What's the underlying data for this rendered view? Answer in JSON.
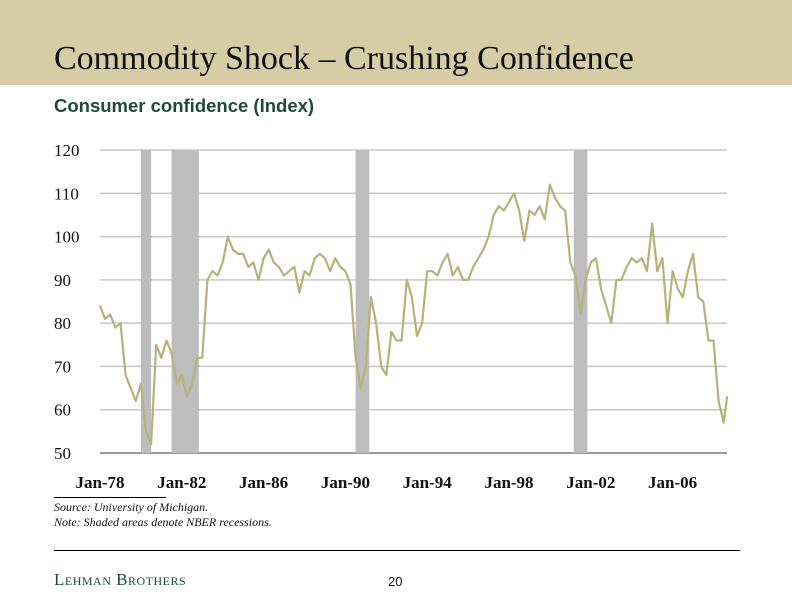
{
  "slide": {
    "title": "Commodity Shock – Crushing Confidence",
    "subtitle": "Consumer confidence (Index)",
    "source": "Source: University of Michigan.",
    "note": "Note: Shaded areas denote NBER recessions.",
    "logo": "Lehman Brothers",
    "page_number": "20",
    "header_color": "#d6cca6"
  },
  "chart_data": {
    "type": "line",
    "title": "Consumer confidence (Index)",
    "xlabel": "",
    "ylabel": "",
    "ylim": [
      50,
      120
    ],
    "yticks": [
      "50",
      "60",
      "70",
      "80",
      "90",
      "100",
      "110",
      "120"
    ],
    "xticks": [
      "Jan-78",
      "Jan-82",
      "Jan-86",
      "Jan-90",
      "Jan-94",
      "Jan-98",
      "Jan-02",
      "Jan-06"
    ],
    "xlim": [
      "1978-01",
      "2008-09"
    ],
    "grid": true,
    "line_color": "#b5b27a",
    "recession_color": "#bdbdbd",
    "recessions": [
      [
        "1980-01",
        "1980-07"
      ],
      [
        "1981-07",
        "1982-11"
      ],
      [
        "1990-07",
        "1991-03"
      ],
      [
        "2001-03",
        "2001-11"
      ]
    ],
    "series": [
      {
        "x": [
          "1978-01",
          "1978-04",
          "1978-07",
          "1978-10",
          "1979-01",
          "1979-04",
          "1979-07",
          "1979-10",
          "1980-01",
          "1980-04",
          "1980-07",
          "1980-10",
          "1981-01",
          "1981-04",
          "1981-07",
          "1981-10",
          "1982-01",
          "1982-04",
          "1982-07",
          "1982-10",
          "1983-01",
          "1983-04",
          "1983-07",
          "1983-10",
          "1984-01",
          "1984-04",
          "1984-07",
          "1984-10",
          "1985-01",
          "1985-04",
          "1985-07",
          "1985-10",
          "1986-01",
          "1986-04",
          "1986-07",
          "1986-10",
          "1987-01",
          "1987-04",
          "1987-07",
          "1987-10",
          "1988-01",
          "1988-04",
          "1988-07",
          "1988-10",
          "1989-01",
          "1989-04",
          "1989-07",
          "1989-10",
          "1990-01",
          "1990-04",
          "1990-07",
          "1990-10",
          "1991-01",
          "1991-04",
          "1991-07",
          "1991-10",
          "1992-01",
          "1992-04",
          "1992-07",
          "1992-10",
          "1993-01",
          "1993-04",
          "1993-07",
          "1993-10",
          "1994-01",
          "1994-04",
          "1994-07",
          "1994-10",
          "1995-01",
          "1995-04",
          "1995-07",
          "1995-10",
          "1996-01",
          "1996-04",
          "1996-07",
          "1996-10",
          "1997-01",
          "1997-04",
          "1997-07",
          "1997-10",
          "1998-01",
          "1998-04",
          "1998-07",
          "1998-10",
          "1999-01",
          "1999-04",
          "1999-07",
          "1999-10",
          "2000-01",
          "2000-04",
          "2000-07",
          "2000-10",
          "2001-01",
          "2001-04",
          "2001-07",
          "2001-10",
          "2002-01",
          "2002-04",
          "2002-07",
          "2002-10",
          "2003-01",
          "2003-04",
          "2003-07",
          "2003-10",
          "2004-01",
          "2004-04",
          "2004-07",
          "2004-10",
          "2005-01",
          "2005-04",
          "2005-07",
          "2005-10",
          "2006-01",
          "2006-04",
          "2006-07",
          "2006-10",
          "2007-01",
          "2007-04",
          "2007-07",
          "2007-10",
          "2008-01",
          "2008-04",
          "2008-07",
          "2008-09"
        ],
        "values": [
          84,
          81,
          82,
          79,
          80,
          68,
          65,
          62,
          66,
          55,
          52,
          75,
          72,
          76,
          73,
          66,
          68,
          63,
          66,
          72,
          72,
          90,
          92,
          91,
          94,
          100,
          97,
          96,
          96,
          93,
          94,
          90,
          95,
          97,
          94,
          93,
          91,
          92,
          93,
          87,
          92,
          91,
          95,
          96,
          95,
          92,
          95,
          93,
          92,
          89,
          72,
          65,
          70,
          86,
          80,
          70,
          68,
          78,
          76,
          76,
          90,
          86,
          77,
          80,
          92,
          92,
          91,
          94,
          96,
          91,
          93,
          90,
          90,
          93,
          95,
          97,
          100,
          105,
          107,
          106,
          108,
          110,
          106,
          99,
          106,
          105,
          107,
          104,
          112,
          109,
          107,
          106,
          94,
          91,
          82,
          90,
          94,
          95,
          88,
          84,
          80,
          90,
          90,
          93,
          95,
          94,
          95,
          92,
          103,
          92,
          95,
          80,
          92,
          88,
          86,
          92,
          96,
          86,
          85,
          76,
          76,
          62,
          57,
          63
        ]
      }
    ]
  }
}
